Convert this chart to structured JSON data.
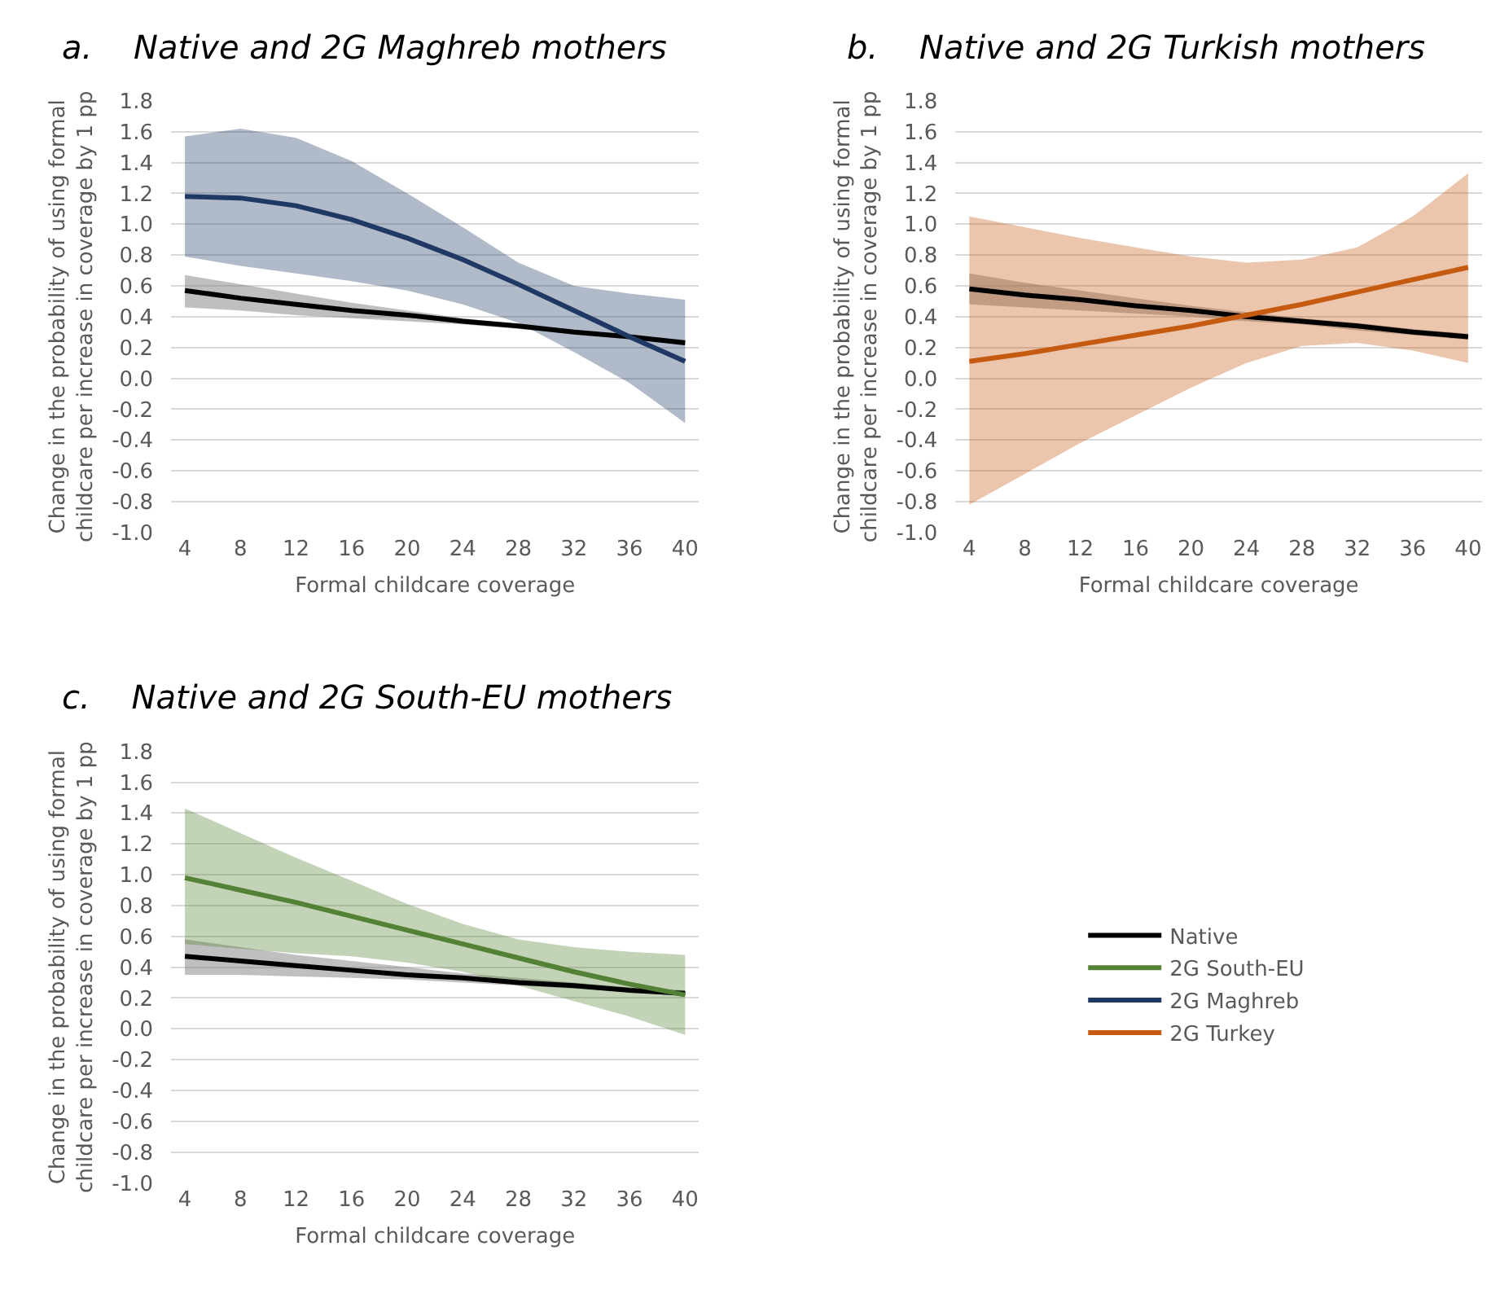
{
  "chart_data": [
    {
      "type": "line",
      "title": "a.    Native and 2G Maghreb mothers",
      "xlabel": "Formal childcare coverage",
      "ylabel": "Change in the probability of using formal\nchildcare per increase in coverage by 1 pp",
      "x": [
        4,
        8,
        12,
        16,
        20,
        24,
        28,
        32,
        36,
        40
      ],
      "xlim": [
        3,
        41
      ],
      "xticks": [
        4,
        8,
        12,
        16,
        20,
        24,
        28,
        32,
        36,
        40
      ],
      "ylim": [
        -1.0,
        1.8
      ],
      "yticks": [
        {
          "value": -1.0,
          "label": "-1.0"
        },
        {
          "value": -0.8,
          "label": "-0.8"
        },
        {
          "value": -0.6,
          "label": "-0.6"
        },
        {
          "value": -0.4,
          "label": "-0.4"
        },
        {
          "value": -0.2,
          "label": "-0.2"
        },
        {
          "value": 0.0,
          "label": "0.0"
        },
        {
          "value": 0.2,
          "label": "0.2"
        },
        {
          "value": 0.4,
          "label": "0.4"
        },
        {
          "value": 0.6,
          "label": "0.6"
        },
        {
          "value": 0.8,
          "label": "0.8"
        },
        {
          "value": 1.0,
          "label": "1.0"
        },
        {
          "value": 1.2,
          "label": "1.2"
        },
        {
          "value": 1.4,
          "label": "1.4"
        },
        {
          "value": 1.6,
          "label": "1.6"
        },
        {
          "value": 1.8,
          "label": "1.8"
        }
      ],
      "grid": "y",
      "legend": "bottom right",
      "series": [
        {
          "name": "Native",
          "color": "#000000",
          "values": [
            0.57,
            0.52,
            0.48,
            0.44,
            0.41,
            0.37,
            0.34,
            0.3,
            0.27,
            0.23
          ],
          "lower": [
            0.46,
            0.44,
            0.41,
            0.39,
            0.37,
            0.35,
            0.32,
            0.29,
            0.26,
            0.22
          ],
          "upper": [
            0.67,
            0.61,
            0.55,
            0.49,
            0.44,
            0.39,
            0.35,
            0.31,
            0.28,
            0.25
          ]
        },
        {
          "name": "2G Maghreb",
          "color": "#203864",
          "values": [
            1.18,
            1.17,
            1.12,
            1.03,
            0.91,
            0.77,
            0.61,
            0.44,
            0.27,
            0.11
          ],
          "lower": [
            0.79,
            0.73,
            0.68,
            0.63,
            0.57,
            0.48,
            0.36,
            0.17,
            -0.03,
            -0.29
          ],
          "upper": [
            1.57,
            1.62,
            1.56,
            1.41,
            1.2,
            0.98,
            0.75,
            0.6,
            0.55,
            0.51
          ]
        }
      ]
    },
    {
      "type": "line",
      "title": "b.    Native and 2G Turkish mothers",
      "xlabel": "Formal childcare coverage",
      "ylabel": "Change in the probability of using formal\nchildcare per increase in coverage by 1 pp",
      "x": [
        4,
        8,
        12,
        16,
        20,
        24,
        28,
        32,
        36,
        40
      ],
      "xlim": [
        3,
        41
      ],
      "xticks": [
        4,
        8,
        12,
        16,
        20,
        24,
        28,
        32,
        36,
        40
      ],
      "ylim": [
        -1.0,
        1.8
      ],
      "yticks": [
        {
          "value": -1.0,
          "label": "-1.0"
        },
        {
          "value": -0.8,
          "label": "-0.8"
        },
        {
          "value": -0.6,
          "label": "-0.6"
        },
        {
          "value": -0.4,
          "label": "-0.4"
        },
        {
          "value": -0.2,
          "label": "-0.2"
        },
        {
          "value": 0.0,
          "label": "0.0"
        },
        {
          "value": 0.2,
          "label": "0.2"
        },
        {
          "value": 0.4,
          "label": "0.4"
        },
        {
          "value": 0.6,
          "label": "0.6"
        },
        {
          "value": 0.8,
          "label": "0.8"
        },
        {
          "value": 1.0,
          "label": "1.0"
        },
        {
          "value": 1.2,
          "label": "1.2"
        },
        {
          "value": 1.4,
          "label": "1.4"
        },
        {
          "value": 1.6,
          "label": "1.6"
        },
        {
          "value": 1.8,
          "label": "1.8"
        }
      ],
      "grid": "y",
      "legend": "bottom left",
      "series": [
        {
          "name": "Native",
          "color": "#000000",
          "values": [
            0.58,
            0.54,
            0.51,
            0.47,
            0.44,
            0.4,
            0.37,
            0.34,
            0.3,
            0.27
          ],
          "lower": [
            0.48,
            0.46,
            0.44,
            0.42,
            0.4,
            0.37,
            0.35,
            0.31,
            0.28,
            0.25
          ],
          "upper": [
            0.68,
            0.62,
            0.57,
            0.52,
            0.47,
            0.43,
            0.39,
            0.36,
            0.32,
            0.29
          ]
        },
        {
          "name": "2G Turkey",
          "color": "#c55a11",
          "values": [
            0.11,
            0.16,
            0.22,
            0.28,
            0.34,
            0.41,
            0.48,
            0.56,
            0.64,
            0.72
          ],
          "lower": [
            -0.82,
            -0.62,
            -0.42,
            -0.24,
            -0.06,
            0.1,
            0.21,
            0.23,
            0.18,
            0.1
          ],
          "upper": [
            1.05,
            0.98,
            0.91,
            0.85,
            0.79,
            0.75,
            0.77,
            0.85,
            1.05,
            1.33
          ]
        }
      ]
    },
    {
      "type": "line",
      "title": "c.    Native and 2G South-EU mothers",
      "xlabel": "Formal childcare coverage",
      "ylabel": "Change in the probability of using formal\nchildcare per increase in coverage by 1 pp",
      "x": [
        4,
        8,
        12,
        16,
        20,
        24,
        28,
        32,
        36,
        40
      ],
      "xlim": [
        3,
        41
      ],
      "xticks": [
        4,
        8,
        12,
        16,
        20,
        24,
        28,
        32,
        36,
        40
      ],
      "ylim": [
        -1.0,
        1.8
      ],
      "yticks": [
        {
          "value": -1.0,
          "label": "-1.0"
        },
        {
          "value": -0.8,
          "label": "-0.8"
        },
        {
          "value": -0.6,
          "label": "-0.6"
        },
        {
          "value": -0.4,
          "label": "-0.4"
        },
        {
          "value": -0.2,
          "label": "-0.2"
        },
        {
          "value": 0.0,
          "label": "0.0"
        },
        {
          "value": 0.2,
          "label": "0.2"
        },
        {
          "value": 0.4,
          "label": "0.4"
        },
        {
          "value": 0.6,
          "label": "0.6"
        },
        {
          "value": 0.8,
          "label": "0.8"
        },
        {
          "value": 1.0,
          "label": "1.0"
        },
        {
          "value": 1.2,
          "label": "1.2"
        },
        {
          "value": 1.4,
          "label": "1.4"
        },
        {
          "value": 1.6,
          "label": "1.6"
        },
        {
          "value": 1.8,
          "label": "1.8"
        }
      ],
      "grid": "y",
      "legend": "right",
      "series": [
        {
          "name": "Native",
          "color": "#000000",
          "values": [
            0.47,
            0.44,
            0.41,
            0.38,
            0.35,
            0.33,
            0.3,
            0.28,
            0.25,
            0.23
          ],
          "lower": [
            0.35,
            0.35,
            0.34,
            0.33,
            0.32,
            0.3,
            0.28,
            0.26,
            0.24,
            0.21
          ],
          "upper": [
            0.58,
            0.53,
            0.48,
            0.44,
            0.4,
            0.36,
            0.33,
            0.3,
            0.27,
            0.25
          ]
        },
        {
          "name": "2G South-EU",
          "color": "#538135",
          "values": [
            0.98,
            0.9,
            0.82,
            0.73,
            0.64,
            0.55,
            0.46,
            0.37,
            0.29,
            0.22
          ],
          "lower": [
            0.55,
            0.52,
            0.49,
            0.47,
            0.43,
            0.37,
            0.28,
            0.18,
            0.08,
            -0.04
          ],
          "upper": [
            1.43,
            1.27,
            1.11,
            0.96,
            0.81,
            0.68,
            0.58,
            0.53,
            0.5,
            0.48
          ]
        }
      ]
    }
  ]
}
